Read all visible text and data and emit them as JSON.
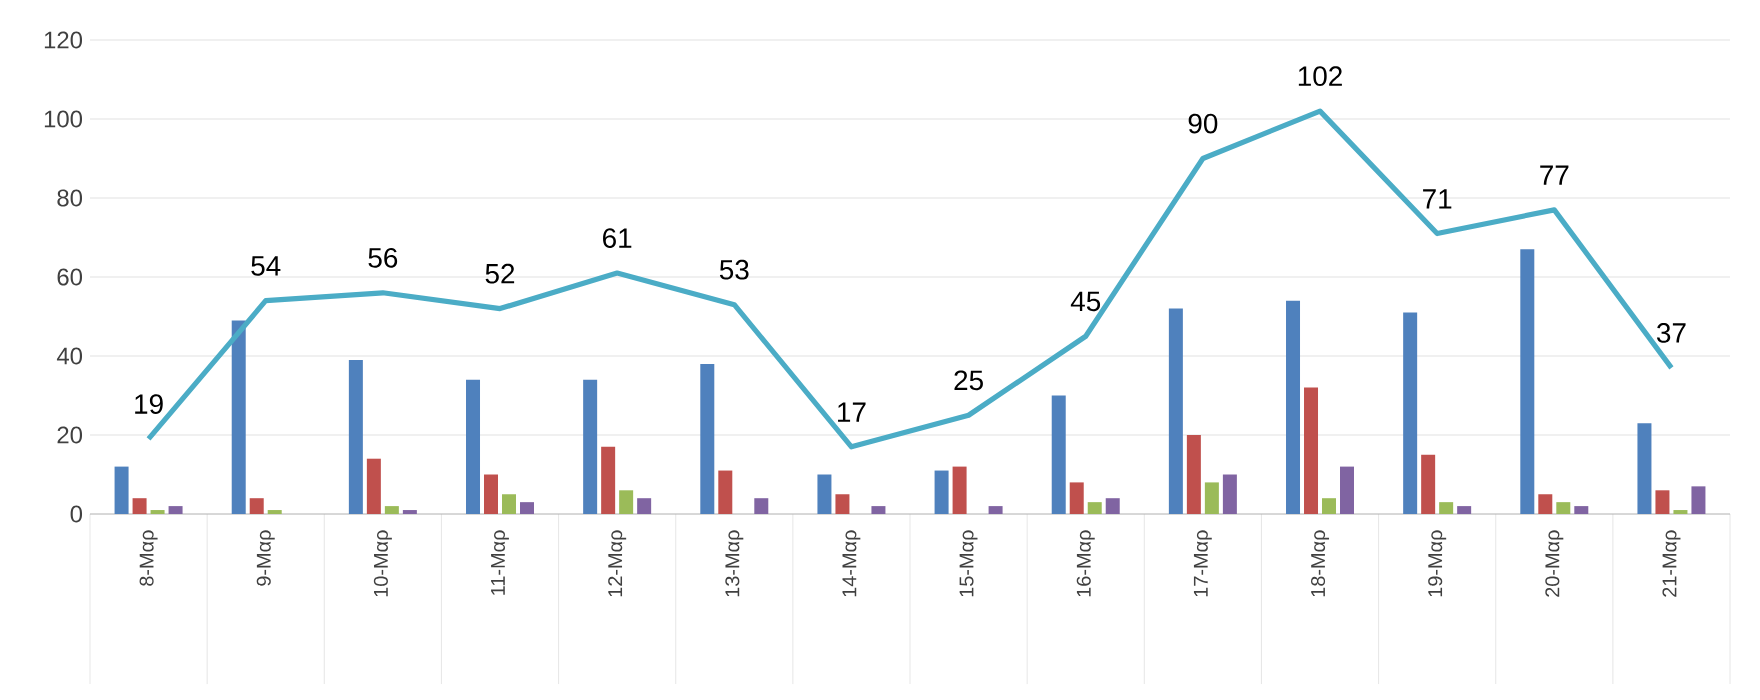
{
  "chart_data": {
    "type": "bar",
    "categories": [
      "8-Μαρ",
      "9-Μαρ",
      "10-Μαρ",
      "11-Μαρ",
      "12-Μαρ",
      "13-Μαρ",
      "14-Μαρ",
      "15-Μαρ",
      "16-Μαρ",
      "17-Μαρ",
      "18-Μαρ",
      "19-Μαρ",
      "20-Μαρ",
      "21-Μαρ"
    ],
    "series": [
      {
        "color": "#4f81bd",
        "values": [
          12,
          49,
          39,
          34,
          34,
          38,
          10,
          11,
          30,
          52,
          54,
          51,
          67,
          23
        ]
      },
      {
        "color": "#c0504d",
        "values": [
          4,
          4,
          14,
          10,
          17,
          11,
          5,
          12,
          8,
          20,
          32,
          15,
          5,
          6
        ]
      },
      {
        "color": "#9bbb59",
        "values": [
          1,
          1,
          2,
          5,
          6,
          0,
          0,
          0,
          3,
          8,
          4,
          3,
          3,
          1
        ]
      },
      {
        "color": "#8064a2",
        "values": [
          2,
          0,
          1,
          3,
          4,
          4,
          2,
          2,
          4,
          10,
          12,
          2,
          2,
          7
        ]
      },
      {
        "type": "line",
        "color": "#4bacc6",
        "values": [
          19,
          54,
          56,
          52,
          61,
          53,
          17,
          25,
          45,
          90,
          102,
          71,
          77,
          37
        ],
        "value_labels": [
          "19",
          "54",
          "56",
          "52",
          "61",
          "53",
          "17",
          "25",
          "45",
          "90",
          "102",
          "71",
          "77",
          "37"
        ]
      }
    ],
    "ylim": [
      0,
      120
    ],
    "yticks": [
      0,
      20,
      40,
      60,
      80,
      100,
      120
    ],
    "grid": "y"
  }
}
